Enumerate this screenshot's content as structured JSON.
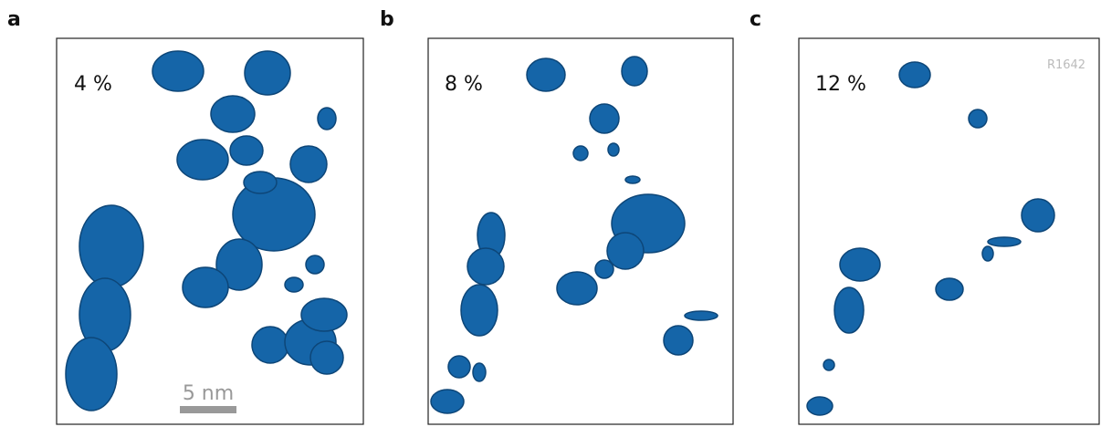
{
  "panels": [
    {
      "label": "a",
      "caption": "4 %"
    },
    {
      "label": "b",
      "caption": "8 %"
    },
    {
      "label": "c",
      "caption": "12 %"
    }
  ],
  "scale_bar": "5 nm",
  "watermark": "R1642"
}
